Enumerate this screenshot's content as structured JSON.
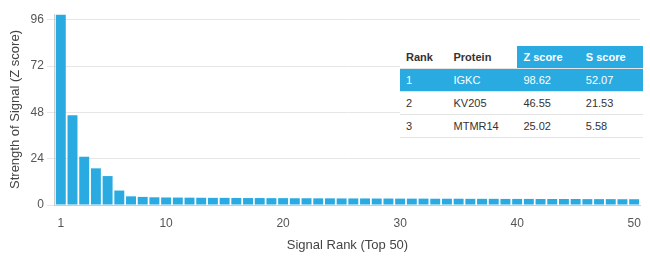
{
  "chart_data": {
    "type": "bar",
    "x_label": "Signal Rank (Top 50)",
    "y_label": "Strength of Signal (Z score)",
    "categories": [
      1,
      null,
      null,
      null,
      null,
      null,
      null,
      null,
      null,
      10,
      null,
      null,
      null,
      null,
      null,
      null,
      null,
      null,
      null,
      20,
      null,
      null,
      null,
      null,
      null,
      null,
      null,
      null,
      null,
      30,
      null,
      null,
      null,
      null,
      null,
      null,
      null,
      null,
      null,
      40,
      null,
      null,
      null,
      null,
      null,
      null,
      null,
      null,
      null,
      50
    ],
    "values": [
      98.62,
      46.55,
      25.02,
      19,
      15,
      7.5,
      4.5,
      4.2,
      4.0,
      3.9,
      3.85,
      3.8,
      3.75,
      3.7,
      3.7,
      3.65,
      3.6,
      3.6,
      3.55,
      3.55,
      3.5,
      3.5,
      3.45,
      3.45,
      3.4,
      3.4,
      3.4,
      3.35,
      3.35,
      3.3,
      3.3,
      3.3,
      3.25,
      3.25,
      3.25,
      3.2,
      3.2,
      3.2,
      3.15,
      3.15,
      3.15,
      3.1,
      3.1,
      3.1,
      3.1,
      3.05,
      3.05,
      3.05,
      3.0,
      3.0
    ],
    "color": "#29abe2",
    "ylim": [
      0,
      99
    ],
    "yticks": [
      0,
      24,
      48,
      72,
      96
    ],
    "grid": true,
    "table": {
      "columns": [
        "Rank",
        "Protein",
        "Z score",
        "S score"
      ],
      "rows": [
        [
          1,
          "IGKC",
          98.62,
          52.07
        ],
        [
          2,
          "KV205",
          46.55,
          21.53
        ],
        [
          3,
          "MTMR14",
          25.02,
          5.58
        ]
      ]
    }
  }
}
